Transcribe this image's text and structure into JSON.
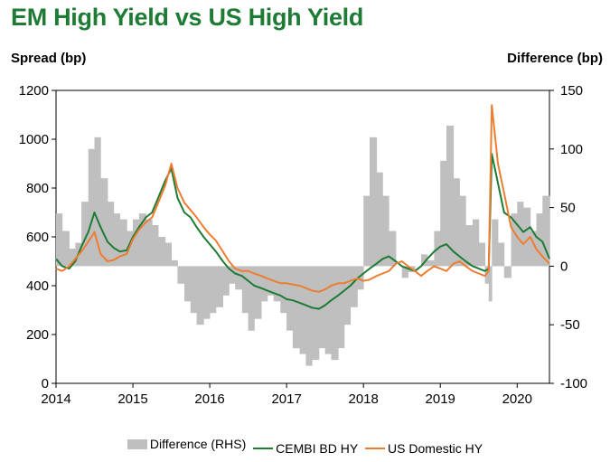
{
  "chart_data": {
    "type": "line",
    "title": "EM High Yield vs US High Yield",
    "ylabel": "Spread (bp)",
    "y2label": "Difference (bp)",
    "ylim": [
      0,
      1200
    ],
    "y2lim": [
      -100,
      150
    ],
    "yticks": [
      "0",
      "200",
      "400",
      "600",
      "800",
      "1000",
      "1200"
    ],
    "y2ticks": [
      "-100",
      "-50",
      "0",
      "50",
      "100",
      "150"
    ],
    "xticks": [
      "2014",
      "2015",
      "2016",
      "2017",
      "2018",
      "2019",
      "2020"
    ],
    "xlim": [
      2014.0,
      2020.42
    ],
    "grid": false,
    "legend_position": "bottom",
    "series": [
      {
        "name": "Difference (RHS)",
        "kind": "area",
        "axis": "right",
        "color": "#bfbfbf",
        "x": [
          2014.0,
          2014.08,
          2014.17,
          2014.25,
          2014.33,
          2014.42,
          2014.5,
          2014.58,
          2014.67,
          2014.75,
          2014.83,
          2014.92,
          2015.0,
          2015.08,
          2015.17,
          2015.25,
          2015.33,
          2015.42,
          2015.5,
          2015.58,
          2015.67,
          2015.75,
          2015.83,
          2015.92,
          2016.0,
          2016.08,
          2016.17,
          2016.25,
          2016.33,
          2016.42,
          2016.5,
          2016.58,
          2016.67,
          2016.75,
          2016.83,
          2016.92,
          2017.0,
          2017.08,
          2017.17,
          2017.25,
          2017.33,
          2017.42,
          2017.5,
          2017.58,
          2017.67,
          2017.75,
          2017.83,
          2017.92,
          2018.0,
          2018.08,
          2018.17,
          2018.25,
          2018.33,
          2018.42,
          2018.5,
          2018.58,
          2018.67,
          2018.75,
          2018.83,
          2018.92,
          2019.0,
          2019.08,
          2019.17,
          2019.25,
          2019.33,
          2019.42,
          2019.5,
          2019.58,
          2019.63,
          2019.67,
          2019.75,
          2019.83,
          2019.92,
          2020.0,
          2020.08,
          2020.17,
          2020.25,
          2020.33,
          2020.42
        ],
        "values": [
          45,
          30,
          15,
          20,
          55,
          100,
          110,
          75,
          55,
          45,
          40,
          30,
          40,
          45,
          40,
          35,
          25,
          20,
          5,
          -15,
          -30,
          -40,
          -50,
          -45,
          -40,
          -35,
          -25,
          -15,
          -20,
          -40,
          -55,
          -45,
          -30,
          -25,
          -30,
          -40,
          -55,
          -70,
          -75,
          -85,
          -80,
          -70,
          -75,
          -80,
          -70,
          -50,
          -35,
          -20,
          60,
          110,
          80,
          60,
          30,
          0,
          -10,
          -5,
          0,
          10,
          5,
          30,
          90,
          120,
          75,
          60,
          35,
          40,
          20,
          -15,
          -30,
          40,
          20,
          -10,
          45,
          55,
          50,
          30,
          45,
          60,
          40
        ]
      },
      {
        "name": "CEMBI BD HY",
        "kind": "line",
        "axis": "left",
        "color": "#1e7b34",
        "x": [
          2014.0,
          2014.08,
          2014.17,
          2014.25,
          2014.33,
          2014.42,
          2014.5,
          2014.58,
          2014.67,
          2014.75,
          2014.83,
          2014.92,
          2015.0,
          2015.08,
          2015.17,
          2015.25,
          2015.33,
          2015.42,
          2015.5,
          2015.58,
          2015.67,
          2015.75,
          2015.83,
          2015.92,
          2016.0,
          2016.08,
          2016.17,
          2016.25,
          2016.33,
          2016.42,
          2016.5,
          2016.58,
          2016.67,
          2016.75,
          2016.83,
          2016.92,
          2017.0,
          2017.08,
          2017.17,
          2017.25,
          2017.33,
          2017.42,
          2017.5,
          2017.58,
          2017.67,
          2017.75,
          2017.83,
          2017.92,
          2018.0,
          2018.08,
          2018.17,
          2018.25,
          2018.33,
          2018.42,
          2018.5,
          2018.58,
          2018.67,
          2018.75,
          2018.83,
          2018.92,
          2019.0,
          2019.08,
          2019.17,
          2019.25,
          2019.33,
          2019.42,
          2019.5,
          2019.58,
          2019.63,
          2019.67,
          2019.75,
          2019.83,
          2019.92,
          2020.0,
          2020.08,
          2020.17,
          2020.25,
          2020.33,
          2020.42
        ],
        "values": [
          510,
          480,
          470,
          500,
          560,
          620,
          700,
          640,
          580,
          555,
          540,
          545,
          600,
          640,
          680,
          700,
          760,
          830,
          880,
          760,
          700,
          680,
          640,
          600,
          570,
          540,
          500,
          470,
          450,
          440,
          420,
          400,
          390,
          380,
          370,
          360,
          345,
          340,
          330,
          320,
          310,
          305,
          320,
          340,
          360,
          380,
          400,
          430,
          450,
          470,
          490,
          510,
          520,
          500,
          480,
          470,
          460,
          480,
          510,
          540,
          560,
          570,
          540,
          520,
          500,
          480,
          470,
          460,
          470,
          940,
          820,
          700,
          680,
          650,
          620,
          640,
          600,
          580,
          510
        ]
      },
      {
        "name": "US Domestic HY",
        "kind": "line",
        "axis": "left",
        "color": "#ed7d31",
        "x": [
          2014.0,
          2014.08,
          2014.17,
          2014.25,
          2014.33,
          2014.42,
          2014.5,
          2014.58,
          2014.67,
          2014.75,
          2014.83,
          2014.92,
          2015.0,
          2015.08,
          2015.17,
          2015.25,
          2015.33,
          2015.42,
          2015.5,
          2015.58,
          2015.67,
          2015.75,
          2015.83,
          2015.92,
          2016.0,
          2016.08,
          2016.17,
          2016.25,
          2016.33,
          2016.42,
          2016.5,
          2016.58,
          2016.67,
          2016.75,
          2016.83,
          2016.92,
          2017.0,
          2017.08,
          2017.17,
          2017.25,
          2017.33,
          2017.42,
          2017.5,
          2017.58,
          2017.67,
          2017.75,
          2017.83,
          2017.92,
          2018.0,
          2018.08,
          2018.17,
          2018.25,
          2018.33,
          2018.42,
          2018.5,
          2018.58,
          2018.67,
          2018.75,
          2018.83,
          2018.92,
          2019.0,
          2019.08,
          2019.17,
          2019.25,
          2019.33,
          2019.42,
          2019.5,
          2019.58,
          2019.63,
          2019.67,
          2019.75,
          2019.83,
          2019.92,
          2020.0,
          2020.08,
          2020.17,
          2020.25,
          2020.33,
          2020.42
        ],
        "values": [
          470,
          460,
          480,
          510,
          540,
          580,
          620,
          530,
          500,
          505,
          520,
          530,
          590,
          630,
          660,
          680,
          740,
          810,
          900,
          800,
          740,
          710,
          680,
          640,
          610,
          585,
          540,
          500,
          470,
          460,
          460,
          450,
          440,
          430,
          420,
          410,
          410,
          405,
          400,
          390,
          380,
          375,
          385,
          400,
          410,
          410,
          420,
          430,
          420,
          425,
          440,
          450,
          460,
          490,
          500,
          480,
          460,
          440,
          460,
          480,
          470,
          460,
          490,
          500,
          480,
          460,
          450,
          440,
          460,
          1140,
          900,
          780,
          640,
          600,
          570,
          600,
          550,
          520,
          490
        ]
      }
    ]
  }
}
